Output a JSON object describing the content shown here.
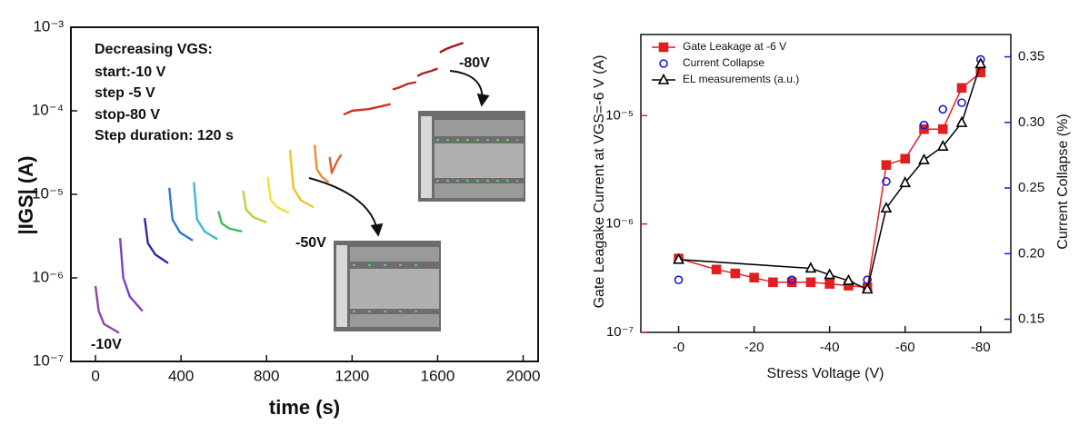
{
  "chart_data": [
    {
      "type": "line",
      "xlabel": "time (s)",
      "ylabel": "|IGS| (A)",
      "log_y": true,
      "xlim": [
        -115,
        2070
      ],
      "xticks": [
        0,
        400,
        800,
        1200,
        1600,
        2000
      ],
      "ylim": [
        1e-07,
        0.001
      ],
      "yticks": [
        {
          "value": 1e-07,
          "label": "10⁻⁷"
        },
        {
          "value": 1e-06,
          "label": "10⁻⁶"
        },
        {
          "value": 1e-05,
          "label": "10⁻⁵"
        },
        {
          "value": 0.0001,
          "label": "10⁻⁴"
        },
        {
          "value": 0.001,
          "label": "10⁻³"
        }
      ],
      "annotations": [
        "Decreasing VGS:",
        "start:-10 V",
        "step -5 V",
        "stop-80 V",
        "Step duration: 120 s",
        "-10V",
        "-50V",
        "-80V"
      ],
      "series": [
        {
          "color": "#8e44ad",
          "x": [
            0,
            15,
            40,
            110
          ],
          "values": [
            8e-07,
            4e-07,
            2.8e-07,
            2.2e-07
          ]
        },
        {
          "color": "#7b3fc9",
          "x": [
            115,
            130,
            160,
            220
          ],
          "values": [
            3e-06,
            1e-06,
            6e-07,
            4e-07
          ]
        },
        {
          "color": "#2b2ba6",
          "x": [
            230,
            245,
            280,
            340
          ],
          "values": [
            5.2e-06,
            2.6e-06,
            1.9e-06,
            1.5e-06
          ]
        },
        {
          "color": "#2f78d6",
          "x": [
            345,
            360,
            395,
            455
          ],
          "values": [
            1.2e-05,
            5e-06,
            3.5e-06,
            2.8e-06
          ]
        },
        {
          "color": "#38bcd6",
          "x": [
            460,
            475,
            510,
            570
          ],
          "values": [
            1.4e-05,
            5e-06,
            3.6e-06,
            2.9e-06
          ]
        },
        {
          "color": "#3fbf5a",
          "x": [
            575,
            590,
            625,
            685
          ],
          "values": [
            6.3e-06,
            4.5e-06,
            3.9e-06,
            3.6e-06
          ]
        },
        {
          "color": "#b5d63a",
          "x": [
            690,
            705,
            740,
            800
          ],
          "values": [
            1.1e-05,
            6.5e-06,
            5.3e-06,
            4.6e-06
          ]
        },
        {
          "color": "#f0e23a",
          "x": [
            805,
            820,
            850,
            905
          ],
          "values": [
            1.6e-05,
            8.5e-06,
            7e-06,
            6e-06
          ]
        },
        {
          "color": "#f2c22a",
          "x": [
            910,
            925,
            960,
            1020
          ],
          "values": [
            3.4e-05,
            1.2e-05,
            8.5e-06,
            7e-06
          ]
        },
        {
          "color": "#f08c2a",
          "x": [
            1025,
            1035,
            1060,
            1090
          ],
          "values": [
            3.9e-05,
            2e-05,
            1.6e-05,
            1.4e-05
          ]
        },
        {
          "color": "#e2602a",
          "x": [
            1095,
            1105,
            1130,
            1150
          ],
          "values": [
            2.8e-05,
            1.8e-05,
            2.5e-05,
            3e-05
          ]
        },
        {
          "color": "#cc3322",
          "x": [
            1160,
            1200,
            1280,
            1380
          ],
          "values": [
            9e-05,
            0.0001,
            0.000105,
            0.00012
          ]
        },
        {
          "color": "#c02a22",
          "x": [
            1390,
            1420,
            1460,
            1500
          ],
          "values": [
            0.00018,
            0.00019,
            0.00021,
            0.00022
          ]
        },
        {
          "color": "#b02020",
          "x": [
            1505,
            1530,
            1570,
            1600
          ],
          "values": [
            0.00026,
            0.00028,
            0.0003,
            0.00032
          ]
        },
        {
          "color": "#a01818",
          "x": [
            1610,
            1640,
            1680,
            1720
          ],
          "values": [
            0.0005,
            0.00055,
            0.0006,
            0.00065
          ]
        }
      ]
    },
    {
      "type": "line",
      "xlabel": "Stress Voltage (V)",
      "ylabel": "Gate Leagake Current at VGS=-6 V (A)",
      "y2label": "Current Collapse (%)",
      "log_y": true,
      "y_color": "#e02020",
      "y2_color": "#1a1ad0",
      "legend": "upper left",
      "xlim": [
        10,
        -88
      ],
      "xticks": [
        {
          "value": 0,
          "label": "-0"
        },
        -20,
        -40,
        -60,
        -80
      ],
      "ylim": [
        1e-07,
        5.6e-05
      ],
      "yticks": [
        {
          "value": 1e-07,
          "label": "10⁻⁷"
        },
        {
          "value": 1e-06,
          "label": "10⁻⁶"
        },
        {
          "value": 1e-05,
          "label": "10⁻⁵"
        }
      ],
      "y2lim": [
        0.14,
        0.367
      ],
      "y2ticks": [
        0.15,
        {
          "value": 0.2,
          "label": "0.20"
        },
        0.25,
        {
          "value": 0.3,
          "label": "0.30"
        },
        0.35
      ],
      "series": [
        {
          "name": "Gate Leakage at -6 V",
          "color": "#e02020",
          "marker": "square",
          "filled": true,
          "line": true,
          "x": [
            0,
            -10,
            -15,
            -20,
            -25,
            -30,
            -35,
            -40,
            -45,
            -50,
            -55,
            -60,
            -65,
            -70,
            -75,
            -80
          ],
          "values": [
            4.8e-07,
            3.8e-07,
            3.5e-07,
            3.2e-07,
            2.9e-07,
            2.9e-07,
            2.9e-07,
            2.8e-07,
            2.7e-07,
            2.6e-07,
            3.5e-06,
            4e-06,
            7.5e-06,
            7.5e-06,
            1.8e-05,
            2.5e-05
          ]
        },
        {
          "name": "Current Collapse",
          "color": "#1a1ad0",
          "marker": "circle",
          "filled": false,
          "line": false,
          "axis": "y2",
          "x": [
            0,
            -30,
            -50,
            -55,
            -65,
            -70,
            -75,
            -80
          ],
          "values": [
            0.18,
            0.18,
            0.18,
            0.255,
            0.298,
            0.31,
            0.315,
            0.348
          ]
        },
        {
          "name": "EL measurements (a.u.)",
          "color": "#000000",
          "marker": "triangle",
          "filled": false,
          "line": true,
          "x": [
            0,
            -35,
            -40,
            -45,
            -50,
            -55,
            -60,
            -65,
            -70,
            -75,
            -80
          ],
          "values": [
            4.7e-07,
            3.9e-07,
            3.4e-07,
            3e-07,
            2.5e-07,
            1.4e-06,
            2.4e-06,
            3.9e-06,
            5.2e-06,
            8.6e-06,
            3e-05
          ]
        }
      ]
    }
  ]
}
